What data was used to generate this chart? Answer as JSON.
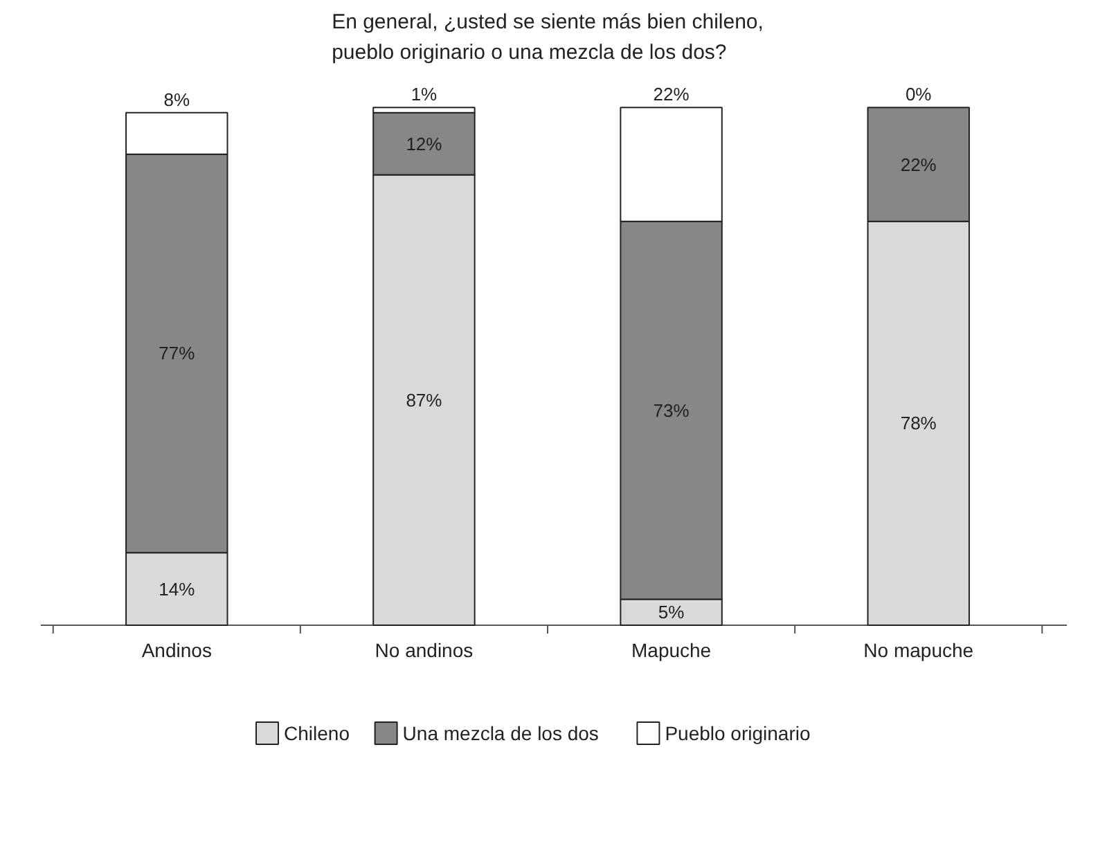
{
  "chart_data": {
    "type": "bar",
    "stacked": true,
    "title": "En general, ¿usted se siente más bien chileno,\npueblo originario o una mezcla de los dos?",
    "categories": [
      "Andinos",
      "No andinos",
      "Mapuche",
      "No mapuche"
    ],
    "series": [
      {
        "name": "Chileno",
        "color": "#d9d9d9",
        "values": [
          14,
          87,
          5,
          78
        ],
        "value_labels": [
          "14%",
          "87%",
          "5%",
          "78%"
        ]
      },
      {
        "name": "Una mezcla de los dos",
        "color": "#87878a",
        "values": [
          77,
          12,
          73,
          22
        ],
        "value_labels": [
          "77%",
          "12%",
          "73%",
          "22%"
        ]
      },
      {
        "name": "Pueblo originario",
        "color": "#ffffff",
        "values": [
          8,
          1,
          22,
          0
        ],
        "value_labels": [
          "8%",
          "1%",
          "22%",
          "0%"
        ]
      }
    ],
    "legend": "bottom"
  }
}
